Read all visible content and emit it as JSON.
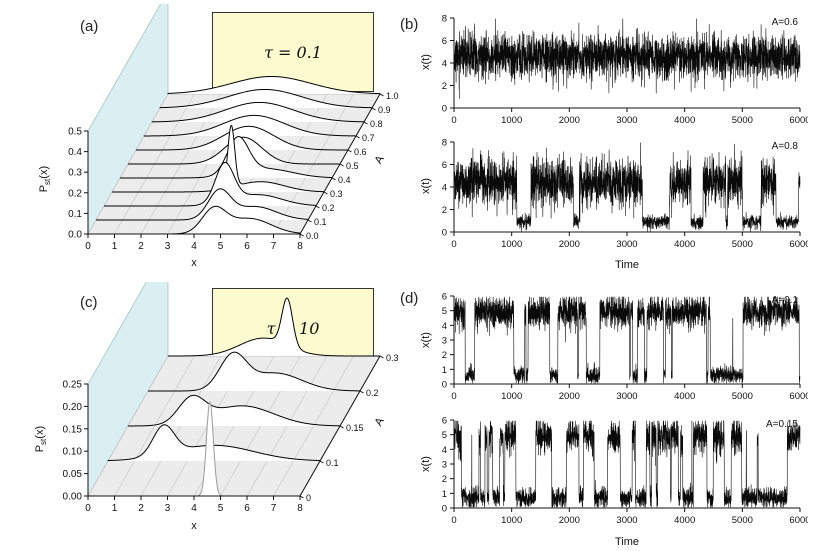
{
  "figure": {
    "background": "#ffffff",
    "wall_color": "#d9eff2",
    "floor_color": "#ececec",
    "floor_grid_color": "#c9c9c9",
    "tau_box_color": "#fbfbcf",
    "curve_color": "#000000",
    "gray_curve_color": "#9a9a9a"
  },
  "chart_data": [
    {
      "id": "a",
      "type": "waterfall",
      "panel_label": "(a)",
      "annotation": "τ = 0.1",
      "xlabel": "x",
      "ylabel": "Pst(x)",
      "ylabel_parts": {
        "base": "P",
        "sub": "st",
        "suffix": "(x)"
      },
      "depth_label": "A",
      "xlim": [
        0,
        8
      ],
      "x_ticks": [
        "0",
        "1",
        "2",
        "3",
        "4",
        "5",
        "6",
        "7",
        "8"
      ],
      "zlim": [
        0,
        0.5
      ],
      "z_ticks": [
        "0.0",
        "0.1",
        "0.2",
        "0.3",
        "0.4",
        "0.5"
      ],
      "depth_ticks": [
        "0.0",
        "0.1",
        "0.2",
        "0.3",
        "0.4",
        "0.5",
        "0.6",
        "0.7",
        "0.8",
        "0.9",
        "1.0"
      ],
      "description": "Stationary probability densities Pst(x) for increasing A at tau=0.1; bimodal near small A, sharp peak near x=4.5 at A=0.3, broad flat distributions at large A",
      "curves": [
        {
          "A": "0.0",
          "peaks": [
            [
              4.75,
              0.115,
              0.45
            ],
            [
              6.1,
              0.075,
              0.8
            ]
          ]
        },
        {
          "A": "0.1",
          "peaks": [
            [
              4.65,
              0.135,
              0.42
            ],
            [
              6.0,
              0.065,
              0.8
            ]
          ]
        },
        {
          "A": "0.2",
          "peaks": [
            [
              4.55,
              0.19,
              0.35
            ],
            [
              5.8,
              0.055,
              0.9
            ]
          ]
        },
        {
          "A": "0.3",
          "peaks": [
            [
              4.5,
              0.3,
              0.13
            ],
            [
              5.6,
              0.05,
              0.9
            ]
          ]
        },
        {
          "A": "0.4",
          "peaks": [
            [
              4.45,
              0.175,
              0.4
            ],
            [
              5.5,
              0.045,
              1.0
            ]
          ]
        },
        {
          "A": "0.5",
          "peaks": [
            [
              4.35,
              0.13,
              0.7
            ]
          ]
        },
        {
          "A": "0.6",
          "peaks": [
            [
              4.25,
              0.115,
              0.95
            ]
          ]
        },
        {
          "A": "0.7",
          "peaks": [
            [
              4.15,
              0.1,
              1.15
            ]
          ]
        },
        {
          "A": "0.8",
          "peaks": [
            [
              4.05,
              0.095,
              1.3
            ]
          ]
        },
        {
          "A": "0.9",
          "peaks": [
            [
              3.95,
              0.09,
              1.4
            ]
          ]
        },
        {
          "A": "1.0",
          "peaks": [
            [
              3.9,
              0.085,
              1.5
            ]
          ]
        }
      ]
    },
    {
      "id": "b",
      "type": "line",
      "panel_label": "(b)",
      "subplots": [
        {
          "annotation": "A=0.6",
          "ylabel": "x(t)",
          "xlabel": "",
          "xlim": [
            0,
            6000
          ],
          "ylim": [
            0,
            8
          ],
          "x_ticks": [
            "0",
            "1000",
            "2000",
            "3000",
            "4000",
            "5000",
            "6000"
          ],
          "y_ticks": [
            "0",
            "2",
            "4",
            "6",
            "8"
          ],
          "series": {
            "seed": 11,
            "level_high": 4.6,
            "level_low": 0.8,
            "noise_high": 1.0,
            "noise_low": 0.28,
            "dwell_high": 1500,
            "dwell_low": 330,
            "clip": [
              0.05,
              7.95
            ],
            "description": "noisy bistable trajectory, long residence near x=4.6 with a few excursions to x=0.8"
          }
        },
        {
          "annotation": "A=0.8",
          "ylabel": "x(t)",
          "xlabel": "Time",
          "xlim": [
            0,
            6000
          ],
          "ylim": [
            0,
            8
          ],
          "x_ticks": [
            "0",
            "1000",
            "2000",
            "3000",
            "4000",
            "5000",
            "6000"
          ],
          "y_ticks": [
            "0",
            "2",
            "4",
            "6",
            "8"
          ],
          "series": {
            "seed": 23,
            "level_high": 4.4,
            "level_low": 0.9,
            "noise_high": 1.05,
            "noise_low": 0.3,
            "dwell_high": 380,
            "dwell_low": 170,
            "clip": [
              0.05,
              7.95
            ],
            "description": "frequent noise-induced switching between x=4.4 and x=0.9"
          }
        }
      ]
    },
    {
      "id": "c",
      "type": "waterfall",
      "panel_label": "(c)",
      "annotation": "τ = 10",
      "xlabel": "x",
      "ylabel": "Pst(x)",
      "ylabel_parts": {
        "base": "P",
        "sub": "st",
        "suffix": "(x)"
      },
      "depth_label": "A",
      "xlim": [
        0,
        8
      ],
      "x_ticks": [
        "0",
        "1",
        "2",
        "3",
        "4",
        "5",
        "6",
        "7",
        "8"
      ],
      "zlim": [
        0,
        0.25
      ],
      "z_ticks": [
        "0.00",
        "0.05",
        "0.10",
        "0.15",
        "0.20",
        "0.25"
      ],
      "depth_ticks": [
        "0",
        "0.1",
        "0.15",
        "0.2",
        "0.3"
      ],
      "description": "Stationary probability densities Pst(x) for increasing A at tau=10; narrow gray peak near x=4.6 at A=0, broad flat distributions at intermediate A, sharp peak again at A=0.3",
      "curves": [
        {
          "A": "0",
          "color": "gray",
          "peaks": [
            [
              4.6,
              0.21,
              0.13
            ]
          ]
        },
        {
          "A": "0.1",
          "peaks": [
            [
              2.1,
              0.065,
              0.4
            ],
            [
              4.0,
              0.035,
              1.5
            ]
          ]
        },
        {
          "A": "0.15",
          "peaks": [
            [
              2.4,
              0.055,
              0.5
            ],
            [
              4.3,
              0.045,
              1.2
            ]
          ]
        },
        {
          "A": "0.2",
          "peaks": [
            [
              3.2,
              0.075,
              0.5
            ],
            [
              4.8,
              0.04,
              1.0
            ]
          ]
        },
        {
          "A": "0.3",
          "peaks": [
            [
              4.5,
              0.105,
              0.2
            ],
            [
              3.6,
              0.04,
              0.9
            ]
          ]
        }
      ]
    },
    {
      "id": "d",
      "type": "line",
      "panel_label": "(d)",
      "subplots": [
        {
          "annotation": "A=0.1",
          "ylabel": "x(t)",
          "xlabel": "",
          "xlim": [
            0,
            6000
          ],
          "ylim": [
            0,
            6
          ],
          "x_ticks": [
            "0",
            "1000",
            "2000",
            "3000",
            "4000",
            "5000",
            "6000"
          ],
          "y_ticks": [
            "0",
            "1",
            "2",
            "3",
            "4",
            "5",
            "6"
          ],
          "series": {
            "seed": 37,
            "level_high": 4.9,
            "level_low": 0.6,
            "noise_high": 0.55,
            "noise_low": 0.3,
            "dwell_high": 300,
            "dwell_low": 100,
            "clip": [
              0.05,
              5.95
            ],
            "description": "trajectory mostly near x=5 with repeated short drops to x=0.6"
          }
        },
        {
          "annotation": "A=0.15",
          "ylabel": "x(t)",
          "xlabel": "Time",
          "xlim": [
            0,
            6000
          ],
          "ylim": [
            0,
            6
          ],
          "x_ticks": [
            "0",
            "1000",
            "2000",
            "3000",
            "4000",
            "5000",
            "6000"
          ],
          "y_ticks": [
            "0",
            "1",
            "2",
            "3",
            "4",
            "5",
            "6"
          ],
          "series": {
            "seed": 53,
            "level_high": 4.9,
            "level_low": 0.7,
            "noise_high": 0.6,
            "noise_low": 0.35,
            "dwell_high": 150,
            "dwell_low": 110,
            "clip": [
              0.05,
              5.95
            ],
            "description": "rapid telegraph-like switching between x=5 and x=0.7"
          }
        }
      ]
    }
  ]
}
